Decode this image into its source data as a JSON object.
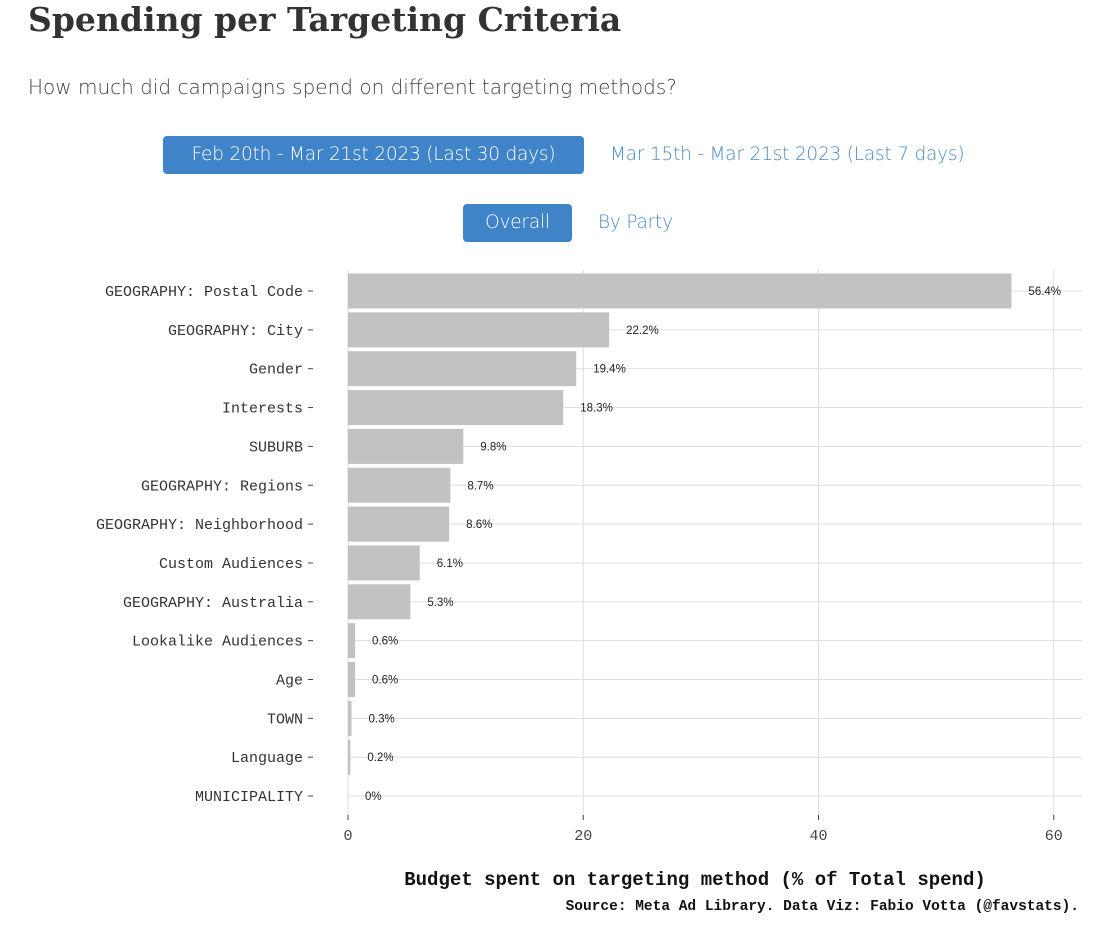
{
  "header": {
    "title": "Spending per Targeting Criteria",
    "subtitle": "How much did campaigns spend on different targeting methods?"
  },
  "date_tabs": [
    {
      "label": "Feb 20th - Mar 21st 2023 (Last 30 days)",
      "active": true
    },
    {
      "label": "Mar 15th - Mar 21st 2023 (Last 7 days)",
      "active": false
    }
  ],
  "view_tabs": [
    {
      "label": "Overall",
      "active": true
    },
    {
      "label": "By Party",
      "active": false
    }
  ],
  "colors": {
    "accent": "#3f84c8",
    "link": "#4a8bc7",
    "bar": "#c2c2c2",
    "grid": "#dddddd"
  },
  "chart_data": {
    "type": "bar",
    "orientation": "horizontal",
    "categories": [
      "GEOGRAPHY: Postal Code",
      "GEOGRAPHY: City",
      "Gender",
      "Interests",
      "SUBURB",
      "GEOGRAPHY: Regions",
      "GEOGRAPHY: Neighborhood",
      "Custom Audiences",
      "GEOGRAPHY: Australia",
      "Lookalike Audiences",
      "Age",
      "TOWN",
      "Language",
      "MUNICIPALITY"
    ],
    "values": [
      56.4,
      22.2,
      19.4,
      18.3,
      9.8,
      8.7,
      8.6,
      6.1,
      5.3,
      0.6,
      0.6,
      0.3,
      0.2,
      0
    ],
    "value_labels": [
      "56.4%",
      "22.2%",
      "19.4%",
      "18.3%",
      "9.8%",
      "8.7%",
      "8.6%",
      "6.1%",
      "5.3%",
      "0.6%",
      "0.6%",
      "0.3%",
      "0.2%",
      "0%"
    ],
    "x_ticks": [
      "0",
      "20",
      "40",
      "60"
    ],
    "xlim": [
      0,
      62.4
    ],
    "xlabel": "Budget spent on targeting method (% of Total spend)",
    "ylabel": "",
    "caption": "Source: Meta Ad Library. Data Viz: Fabio Votta (@favstats).",
    "grid": true,
    "legend": "none"
  }
}
